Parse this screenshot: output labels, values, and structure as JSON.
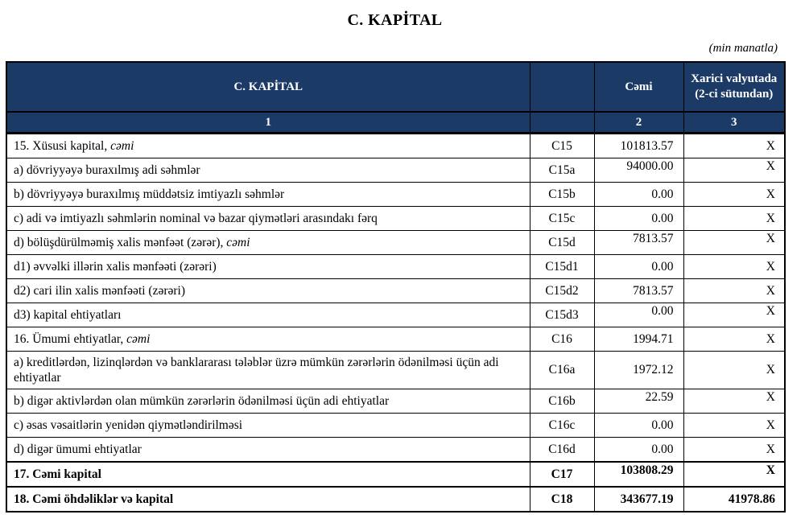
{
  "title": "C. KAPİTAL",
  "unit_note": "(min manatla)",
  "colors": {
    "header_bg": "#1B3A66",
    "header_text": "#FFFFFF",
    "border": "#000000"
  },
  "table": {
    "header": {
      "col_name": "C. KAPİTAL",
      "col_code": "",
      "col_total": "Cəmi",
      "col_foreign": "Xarici valyutada (2-ci sütundan)"
    },
    "subheader": [
      "1",
      "",
      "2",
      "3"
    ],
    "rows": [
      {
        "label": "15. Xüsusi kapital, ",
        "label_italic": "cəmi",
        "code": "C15",
        "total": "101813.57",
        "foreign": "X"
      },
      {
        "label": "a) dövriyyəyə buraxılmış adi səhmlər",
        "code": "C15a",
        "total": "94000.00",
        "foreign": "X",
        "raised": true
      },
      {
        "label": "b) dövriyyəyə buraxılmış müddətsiz imtiyazlı səhmlər",
        "code": "C15b",
        "total": "0.00",
        "foreign": "X"
      },
      {
        "label": "c) adi və imtiyazlı səhmlərin nominal və bazar qiymətləri arasındakı fərq",
        "code": "C15c",
        "total": "0.00",
        "foreign": "X"
      },
      {
        "label": "d) bölüşdürülməmiş xalis mənfəət (zərər), ",
        "label_italic": "cəmi",
        "code": "C15d",
        "total": "7813.57",
        "foreign": "X",
        "raised": true
      },
      {
        "label": "d1) əvvəlki illərin xalis mənfəəti (zərəri)",
        "code": "C15d1",
        "total": "0.00",
        "foreign": "X"
      },
      {
        "label": "d2) cari ilin xalis mənfəəti (zərəri)",
        "code": "C15d2",
        "total": "7813.57",
        "foreign": "X"
      },
      {
        "label": "d3) kapital ehtiyatları",
        "code": "C15d3",
        "total": "0.00",
        "foreign": "X",
        "raised": true
      },
      {
        "label": "16. Ümumi ehtiyatlar, ",
        "label_italic": "cəmi",
        "code": "C16",
        "total": "1994.71",
        "foreign": "X"
      },
      {
        "label": "a) kreditlərdən, lizinqlərdən və banklararası  tələblər üzrə mümkün zərərlərin ödənilməsi üçün adi ehtiyatlar",
        "code": "C16a",
        "total": "1972.12",
        "foreign": "X",
        "tall": true
      },
      {
        "label": "b) digər aktivlərdən olan mümkün zərərlərin ödənilməsi üçün adi ehtiyatlar",
        "code": "C16b",
        "total": "22.59",
        "foreign": "X",
        "raised": true
      },
      {
        "label": "c) əsas vəsaitlərin yenidən qiymətləndirilməsi",
        "code": "C16c",
        "total": "0.00",
        "foreign": "X"
      },
      {
        "label": "d) digər ümumi ehtiyatlar",
        "code": "C16d",
        "total": "0.00",
        "foreign": "X"
      },
      {
        "label": "17. Cəmi kapital",
        "code": "C17",
        "total": "103808.29",
        "foreign": "X",
        "bold": true,
        "raised": true,
        "thick_top": true
      },
      {
        "label": "18. Cəmi öhdəliklər və kapital",
        "code": "C18",
        "total": "343677.19",
        "foreign": "41978.86",
        "bold": true,
        "thick_top": true
      }
    ]
  }
}
